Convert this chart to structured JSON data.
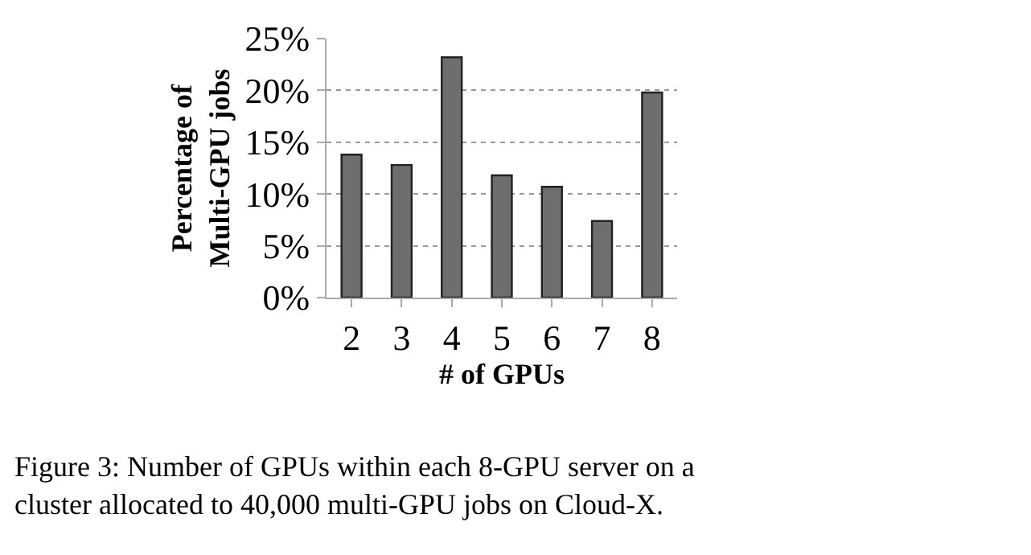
{
  "chart_data": {
    "type": "bar",
    "xlabel": "# of GPUs",
    "ylabel": "Percentage of\nMulti-GPU jobs",
    "categories": [
      "2",
      "3",
      "4",
      "5",
      "6",
      "7",
      "8"
    ],
    "values": [
      13.8,
      12.8,
      23.2,
      11.8,
      10.7,
      7.4,
      19.8
    ],
    "color": "#6e6e6e",
    "ylim": [
      0,
      25
    ],
    "yticks": [
      {
        "value": 0,
        "label": "0%"
      },
      {
        "value": 5,
        "label": "5%"
      },
      {
        "value": 10,
        "label": "10%"
      },
      {
        "value": 15,
        "label": "15%"
      },
      {
        "value": 20,
        "label": "20%"
      },
      {
        "value": 25,
        "label": "25%"
      }
    ],
    "grid": "y",
    "line_style": "dotted",
    "annotations": [
      "Figure 3: Number of GPUs within each 8-GPU server on a\ncluster allocated to 40,000 multi-GPU jobs on Cloud-X."
    ]
  }
}
